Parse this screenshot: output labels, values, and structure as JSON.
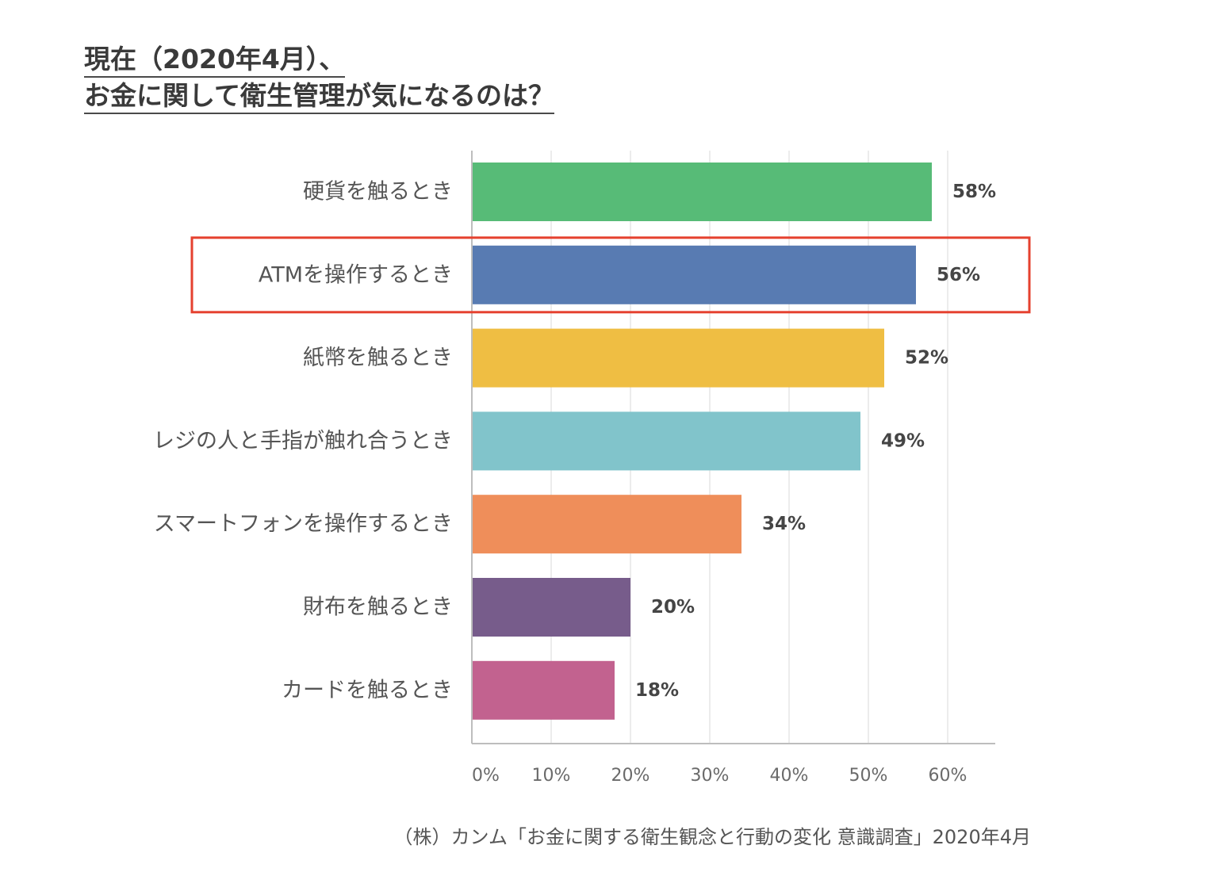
{
  "title": {
    "line1": "現在（2020年4月）、",
    "line2": "お金に関して衛生管理が気になるのは？"
  },
  "source": "（株）カンム「お金に関する衛生観念と行動の変化 意識調査」2020年4月",
  "highlight_color": "#e5412f",
  "chart_data": {
    "type": "bar",
    "orientation": "horizontal",
    "categories": [
      "硬貨を触るとき",
      "ATMを操作するとき",
      "紙幣を触るとき",
      "レジの人と手指が触れ合うとき",
      "スマートフォンを操作するとき",
      "財布を触るとき",
      "カードを触るとき"
    ],
    "values": [
      58,
      56,
      52,
      49,
      34,
      20,
      18
    ],
    "value_labels": [
      "58%",
      "56%",
      "52%",
      "49%",
      "34%",
      "20%",
      "18%"
    ],
    "colors": [
      "#57bb77",
      "#587bb2",
      "#efbe43",
      "#81c4cb",
      "#ef8e5a",
      "#775c8b",
      "#c2628f"
    ],
    "xlim": [
      0,
      66
    ],
    "xticks": [
      0,
      10,
      20,
      30,
      40,
      50,
      60
    ],
    "xtick_labels": [
      "0%",
      "10%",
      "20%",
      "30%",
      "40%",
      "50%",
      "60%"
    ],
    "grid": true,
    "highlighted_category": "ATMを操作するとき"
  }
}
